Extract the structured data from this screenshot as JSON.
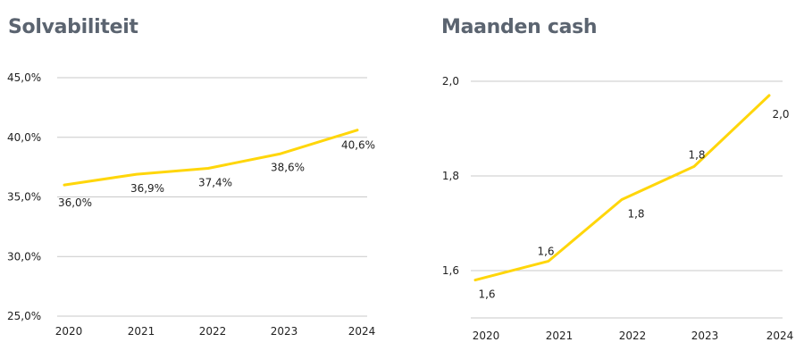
{
  "chart_data": [
    {
      "type": "line",
      "title": "Solvabiliteit",
      "x": [
        "2020",
        "2021",
        "2022",
        "2023",
        "2024"
      ],
      "ylim": [
        25,
        45
      ],
      "yticks": [
        25,
        30,
        35,
        40,
        45
      ],
      "ytick_labels": [
        "25,0%",
        "30,0%",
        "35,0%",
        "40,0%",
        "45,0%"
      ],
      "series": [
        {
          "values": [
            36.0,
            36.9,
            37.4,
            38.6,
            40.6
          ],
          "labels": [
            "36,0%",
            "36,9%",
            "37,4%",
            "38,6%",
            "40,6%"
          ]
        }
      ],
      "grid": true,
      "color": "#ffd60a"
    },
    {
      "type": "line",
      "title": "Maanden cash",
      "x": [
        "2020",
        "2021",
        "2022",
        "2023",
        "2024"
      ],
      "ylim": [
        1.5,
        2.0
      ],
      "yticks": [
        1.6,
        1.8,
        2.0
      ],
      "ytick_labels": [
        "1,6",
        "1,8",
        "2,0"
      ],
      "series": [
        {
          "values": [
            1.58,
            1.62,
            1.75,
            1.82,
            1.97
          ],
          "labels": [
            "1,6",
            "1,6",
            "1,8",
            "1,8",
            "2,0"
          ]
        }
      ],
      "grid": true,
      "color": "#ffd60a"
    }
  ]
}
